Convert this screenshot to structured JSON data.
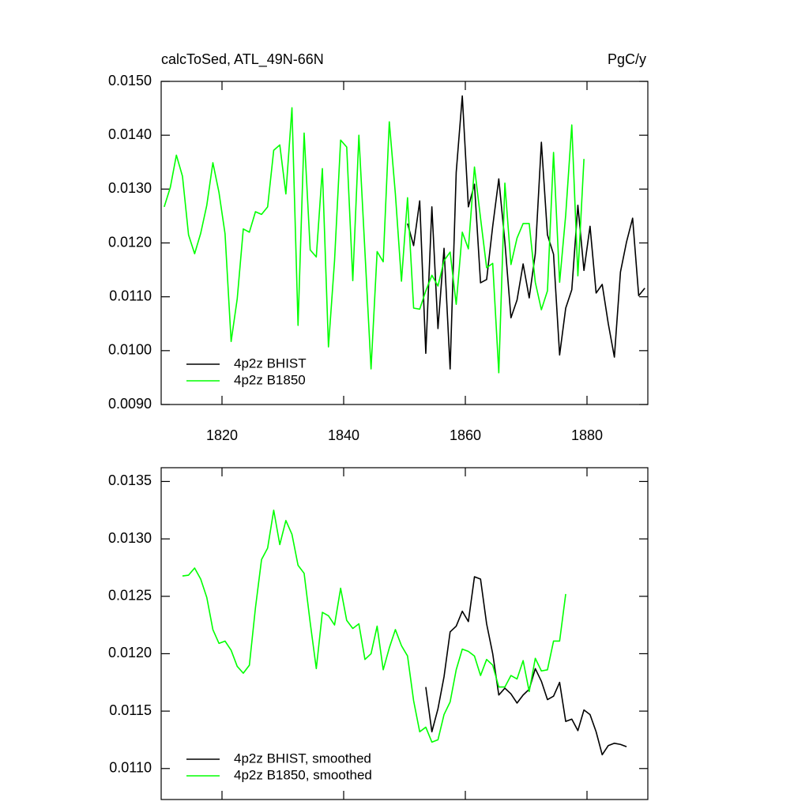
{
  "chart_data": [
    {
      "type": "line",
      "title": "calcToSed, ATL_49N-66N",
      "subtitle": "PgC/y",
      "xlim": [
        1810,
        1890
      ],
      "xticks": [
        1820,
        1840,
        1860,
        1880
      ],
      "ylim": [
        0.009,
        0.015
      ],
      "yticks": [
        {
          "value": 0.009,
          "label": "0.0090"
        },
        {
          "value": 0.01,
          "label": "0.0100"
        },
        {
          "value": 0.011,
          "label": "0.0110"
        },
        {
          "value": 0.012,
          "label": "0.0120"
        },
        {
          "value": 0.013,
          "label": "0.0130"
        },
        {
          "value": 0.014,
          "label": "0.0140"
        },
        {
          "value": 0.015,
          "label": "0.0150"
        }
      ],
      "legend": "lower left",
      "series": [
        {
          "name": "4p2z BHIST",
          "color": "#000000",
          "x": [
            1850.5,
            1851.5,
            1852.5,
            1853.5,
            1854.5,
            1855.5,
            1856.5,
            1857.5,
            1858.5,
            1859.5,
            1860.5,
            1861.5,
            1862.5,
            1863.5,
            1864.5,
            1865.5,
            1866.5,
            1867.5,
            1868.5,
            1869.5,
            1870.5,
            1871.5,
            1872.5,
            1873.5,
            1874.5,
            1875.5,
            1876.5,
            1877.5,
            1878.5,
            1879.5,
            1880.5,
            1881.5,
            1882.5,
            1883.5,
            1884.5,
            1885.5,
            1886.5,
            1887.5,
            1888.5,
            1889.5
          ],
          "values": [
            0.01236,
            0.01195,
            0.01278,
            0.00995,
            0.01267,
            0.01041,
            0.0119,
            0.00966,
            0.01331,
            0.01473,
            0.01267,
            0.01309,
            0.01126,
            0.01132,
            0.01231,
            0.01319,
            0.01202,
            0.01061,
            0.01094,
            0.01161,
            0.01098,
            0.0118,
            0.01387,
            0.01215,
            0.01179,
            0.00992,
            0.01079,
            0.01113,
            0.0127,
            0.01149,
            0.01231,
            0.01107,
            0.01123,
            0.0105,
            0.00988,
            0.01146,
            0.01202,
            0.01246,
            0.01102,
            0.01116
          ]
        },
        {
          "name": "4p2z B1850",
          "color": "#00ff00",
          "x": [
            1810.5,
            1811.5,
            1812.5,
            1813.5,
            1814.5,
            1815.5,
            1816.5,
            1817.5,
            1818.5,
            1819.5,
            1820.5,
            1821.5,
            1822.5,
            1823.5,
            1824.5,
            1825.5,
            1826.5,
            1827.5,
            1828.5,
            1829.5,
            1830.5,
            1831.5,
            1832.5,
            1833.5,
            1834.5,
            1835.5,
            1836.5,
            1837.5,
            1838.5,
            1839.5,
            1840.5,
            1841.5,
            1842.5,
            1843.5,
            1844.5,
            1845.5,
            1846.5,
            1847.5,
            1848.5,
            1849.5,
            1850.5,
            1851.5,
            1852.5,
            1853.5,
            1854.5,
            1855.5,
            1856.5,
            1857.5,
            1858.5,
            1859.5,
            1860.5,
            1861.5,
            1862.5,
            1863.5,
            1864.5,
            1865.5,
            1866.5,
            1867.5,
            1868.5,
            1869.5,
            1870.5,
            1871.5,
            1872.5,
            1873.5,
            1874.5,
            1875.5,
            1876.5,
            1877.5,
            1878.5,
            1879.5
          ],
          "values": [
            0.01267,
            0.01303,
            0.01363,
            0.01324,
            0.01215,
            0.0118,
            0.01218,
            0.0127,
            0.01349,
            0.01294,
            0.01217,
            0.01017,
            0.01096,
            0.01226,
            0.0122,
            0.01258,
            0.01253,
            0.01267,
            0.01372,
            0.01382,
            0.01291,
            0.01451,
            0.01047,
            0.01404,
            0.01187,
            0.01174,
            0.01338,
            0.01007,
            0.01167,
            0.01391,
            0.01378,
            0.0113,
            0.014,
            0.01183,
            0.00966,
            0.01184,
            0.01165,
            0.01425,
            0.01291,
            0.01129,
            0.01284,
            0.01079,
            0.01077,
            0.01111,
            0.0114,
            0.0112,
            0.01167,
            0.01183,
            0.01086,
            0.0122,
            0.01189,
            0.01341,
            0.01246,
            0.01154,
            0.01162,
            0.00959,
            0.01311,
            0.0116,
            0.01209,
            0.01236,
            0.01236,
            0.01127,
            0.01076,
            0.01111,
            0.01368,
            0.01127,
            0.01252,
            0.01419,
            0.01139,
            0.01356
          ]
        }
      ]
    },
    {
      "type": "line",
      "xlim": [
        1810,
        1890
      ],
      "xticks": [
        1820,
        1840,
        1860,
        1880
      ],
      "xtick_labels": false,
      "ylim": [
        0.01073,
        0.01362
      ],
      "yticks": [
        {
          "value": 0.011,
          "label": "0.0110"
        },
        0.0115,
        {
          "value": 0.012,
          "label": "0.0120"
        },
        0.0125,
        {
          "value": 0.013,
          "label": "0.0130"
        },
        0.0135
      ],
      "legend": "lower left",
      "series": [
        {
          "name": "4p2z BHIST, smoothed",
          "color": "#000000",
          "x": [
            1853.5,
            1854.5,
            1855.5,
            1856.5,
            1857.5,
            1858.5,
            1859.5,
            1860.5,
            1861.5,
            1862.5,
            1863.5,
            1864.5,
            1865.5,
            1866.5,
            1867.5,
            1868.5,
            1869.5,
            1870.5,
            1871.5,
            1872.5,
            1873.5,
            1874.5,
            1875.5,
            1876.5,
            1877.5,
            1878.5,
            1879.5,
            1880.5,
            1881.5,
            1882.5,
            1883.5,
            1884.5,
            1885.5,
            1886.5
          ],
          "values": [
            0.01171,
            0.01132,
            0.01152,
            0.0118,
            0.01219,
            0.01224,
            0.01237,
            0.01228,
            0.01267,
            0.01265,
            0.01226,
            0.012,
            0.01164,
            0.0117,
            0.01165,
            0.01157,
            0.01164,
            0.01169,
            0.01187,
            0.01176,
            0.0116,
            0.01163,
            0.01175,
            0.01141,
            0.01143,
            0.01133,
            0.01151,
            0.01147,
            0.01132,
            0.01112,
            0.0112,
            0.01122,
            0.01121,
            0.01119
          ]
        },
        {
          "name": "4p2z B1850, smoothed",
          "color": "#00ff00",
          "x": [
            1813.5,
            1814.5,
            1815.5,
            1816.5,
            1817.5,
            1818.5,
            1819.5,
            1820.5,
            1821.5,
            1822.5,
            1823.5,
            1824.5,
            1825.5,
            1826.5,
            1827.5,
            1828.5,
            1829.5,
            1830.5,
            1831.5,
            1832.5,
            1833.5,
            1834.5,
            1835.5,
            1836.5,
            1837.5,
            1838.5,
            1839.5,
            1840.5,
            1841.5,
            1842.5,
            1843.5,
            1844.5,
            1845.5,
            1846.5,
            1847.5,
            1848.5,
            1849.5,
            1850.5,
            1851.5,
            1852.5,
            1853.5,
            1854.5,
            1855.5,
            1856.5,
            1857.5,
            1858.5,
            1859.5,
            1860.5,
            1861.5,
            1862.5,
            1863.5,
            1864.5,
            1865.5,
            1866.5,
            1867.5,
            1868.5,
            1869.5,
            1870.5,
            1871.5,
            1872.5,
            1873.5,
            1874.5,
            1875.5,
            1876.5
          ],
          "values": [
            0.012677,
            0.012684,
            0.012746,
            0.01265,
            0.01249,
            0.01221,
            0.01209,
            0.01211,
            0.01203,
            0.01189,
            0.01183,
            0.0119,
            0.0124,
            0.01282,
            0.01292,
            0.01325,
            0.01295,
            0.01316,
            0.01304,
            0.01277,
            0.0127,
            0.01227,
            0.01187,
            0.01236,
            0.01233,
            0.01225,
            0.01257,
            0.01229,
            0.01222,
            0.01226,
            0.01195,
            0.012,
            0.01224,
            0.01186,
            0.01205,
            0.01221,
            0.01207,
            0.01198,
            0.01159,
            0.01132,
            0.01136,
            0.01123,
            0.01125,
            0.01147,
            0.01158,
            0.01186,
            0.01204,
            0.01202,
            0.01198,
            0.01181,
            0.01195,
            0.0119,
            0.01171,
            0.01171,
            0.01181,
            0.01178,
            0.01194,
            0.01167,
            0.01196,
            0.01185,
            0.01186,
            0.01211,
            0.01211,
            0.01252
          ]
        }
      ]
    }
  ]
}
